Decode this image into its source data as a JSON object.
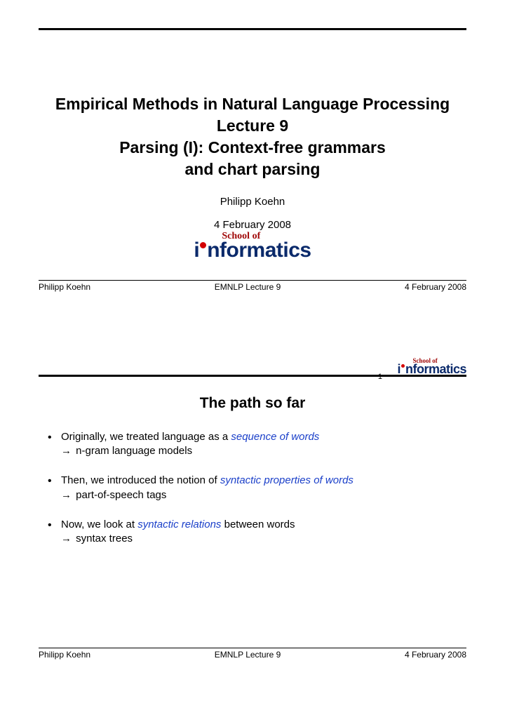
{
  "slide1": {
    "title_line1": "Empirical Methods in Natural Language Processing",
    "title_line2": "Lecture 9",
    "title_line3": "Parsing (I): Context-free grammars",
    "title_line4": "and chart parsing",
    "author": "Philipp Koehn",
    "date": "4 February 2008",
    "footer_left": "Philipp Koehn",
    "footer_center": "EMNLP Lecture 9",
    "footer_right": "4 February 2008"
  },
  "slide2": {
    "page_number": "1",
    "section_title": "The path so far",
    "bullets": [
      {
        "pre": "Originally, we treated language as a ",
        "em": "sequence of words",
        "post": "",
        "sub_arrow": "→",
        "sub_text": " n-gram language models"
      },
      {
        "pre": "Then, we introduced the notion of ",
        "em": "syntactic properties of words",
        "post": "",
        "sub_arrow": "→",
        "sub_text": " part-of-speech tags"
      },
      {
        "pre": "Now, we look at ",
        "em": "syntactic relations",
        "post": " between words",
        "sub_arrow": "→",
        "sub_text": " syntax trees"
      }
    ],
    "footer_left": "Philipp Koehn",
    "footer_center": "EMNLP Lecture 9",
    "footer_right": "4 February 2008"
  },
  "logo": {
    "school_of": "School of",
    "word_pre_dot": "i",
    "word_post_dot": "nformatics"
  },
  "colors": {
    "link_color": "#1a3fc9",
    "logo_navy": "#0b2a6b",
    "logo_red_text": "#a00808",
    "logo_dot": "#d40000",
    "rule": "#000000",
    "text": "#000000",
    "background": "#ffffff"
  },
  "typography": {
    "title_fontsize_pt": 17,
    "body_fontsize_pt": 11,
    "footer_fontsize_pt": 9,
    "section_title_fontsize_pt": 16,
    "font_family": "Trebuchet MS / sans-serif"
  }
}
